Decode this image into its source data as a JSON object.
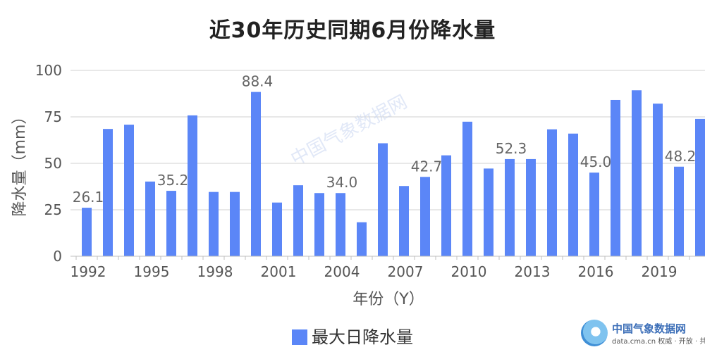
{
  "chart_data": {
    "type": "bar",
    "title": "近30年历史同期6月份降水量",
    "xlabel": "年份（Y）",
    "ylabel": "降水量（mm）",
    "ylim": [
      0,
      100
    ],
    "yticks": [
      "0",
      "25",
      "50",
      "75",
      "100"
    ],
    "x_tick_labels": [
      "1992",
      "1995",
      "1998",
      "2001",
      "2004",
      "2007",
      "2010",
      "2013",
      "2016",
      "2019"
    ],
    "grid": true,
    "legend_position": "bottom",
    "bar_color": "#5b86f7",
    "categories": [
      "1992",
      "1993",
      "1994",
      "1995",
      "1996",
      "1997",
      "1998",
      "1999",
      "2000",
      "2001",
      "2002",
      "2003",
      "2004",
      "2005",
      "2006",
      "2007",
      "2008",
      "2009",
      "2010",
      "2011",
      "2012",
      "2013",
      "2014",
      "2015",
      "2016",
      "2017",
      "2018",
      "2019",
      "2020",
      "2021"
    ],
    "series": [
      {
        "name": "最大日降水量",
        "values": [
          26.1,
          68.5,
          70.8,
          40.2,
          35.2,
          75.8,
          34.6,
          34.6,
          88.4,
          28.9,
          38.2,
          34.0,
          34.0,
          18.3,
          60.8,
          37.8,
          42.7,
          54.3,
          72.4,
          47.2,
          52.3,
          52.3,
          68.3,
          66.0,
          45.0,
          84.1,
          89.3,
          82.1,
          48.2,
          73.9
        ]
      }
    ],
    "data_labels": [
      {
        "category": "1992",
        "text": "26.1"
      },
      {
        "category": "1996",
        "text": "35.2"
      },
      {
        "category": "2000",
        "text": "88.4"
      },
      {
        "category": "2004",
        "text": "34.0"
      },
      {
        "category": "2008",
        "text": "42.7"
      },
      {
        "category": "2012",
        "text": "52.3"
      },
      {
        "category": "2016",
        "text": "45.0"
      },
      {
        "category": "2020",
        "text": "48.2"
      }
    ]
  },
  "watermark_text": "中国气象数据网",
  "logo": {
    "name": "中国气象数据网",
    "url_text": "data.cma.cn 权威 · 开放 · 共赢"
  }
}
